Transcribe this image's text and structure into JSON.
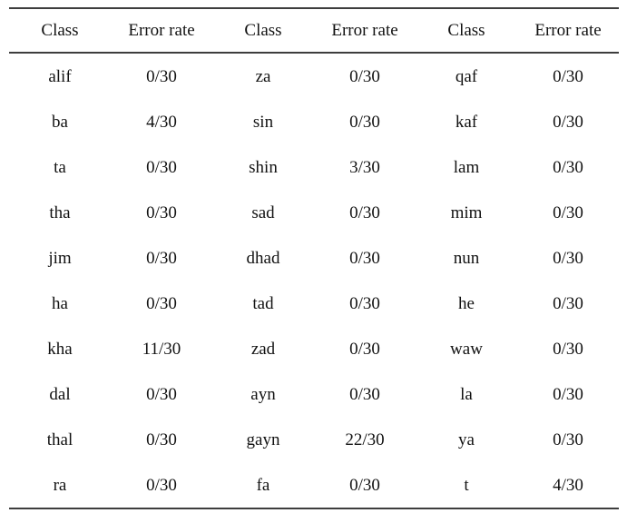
{
  "page": {
    "background_color": "#ffffff",
    "text_color": "#121212",
    "rule_color": "#3d3d3d"
  },
  "table": {
    "columns": [
      {
        "label": "Class"
      },
      {
        "label": "Error rate"
      },
      {
        "label": "Class"
      },
      {
        "label": "Error rate"
      },
      {
        "label": "Class"
      },
      {
        "label": "Error rate"
      }
    ],
    "rows": [
      [
        "alif",
        "0/30",
        "za",
        "0/30",
        "qaf",
        "0/30"
      ],
      [
        "ba",
        "4/30",
        "sin",
        "0/30",
        "kaf",
        "0/30"
      ],
      [
        "ta",
        "0/30",
        "shin",
        "3/30",
        "lam",
        "0/30"
      ],
      [
        "tha",
        "0/30",
        "sad",
        "0/30",
        "mim",
        "0/30"
      ],
      [
        "jim",
        "0/30",
        "dhad",
        "0/30",
        "nun",
        "0/30"
      ],
      [
        "ha",
        "0/30",
        "tad",
        "0/30",
        "he",
        "0/30"
      ],
      [
        "kha",
        "11/30",
        "zad",
        "0/30",
        "waw",
        "0/30"
      ],
      [
        "dal",
        "0/30",
        "ayn",
        "0/30",
        "la",
        "0/30"
      ],
      [
        "thal",
        "0/30",
        "gayn",
        "22/30",
        "ya",
        "0/30"
      ],
      [
        "ra",
        "0/30",
        "fa",
        "0/30",
        "t",
        "4/30"
      ]
    ]
  }
}
